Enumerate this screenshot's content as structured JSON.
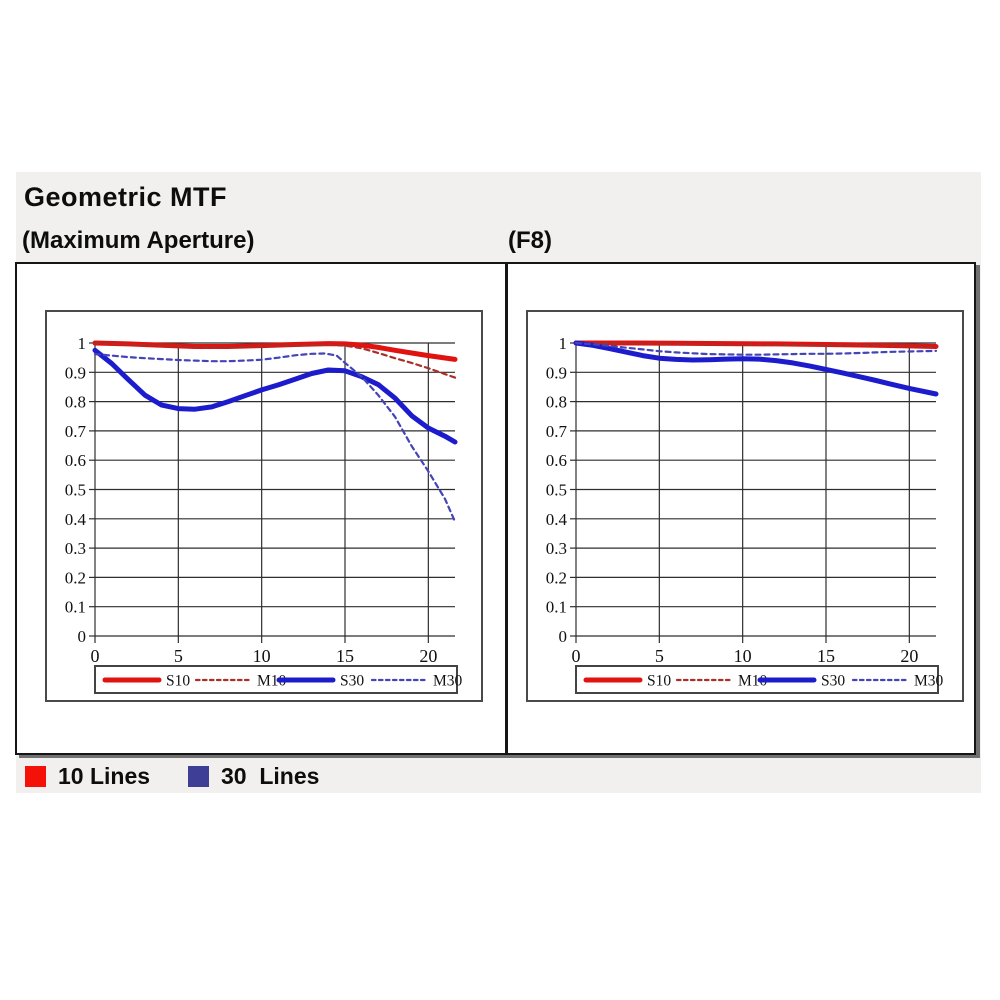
{
  "header": {
    "title": "Geometric MTF",
    "left_subtitle": "(Maximum Aperture)",
    "right_subtitle": "(F8)"
  },
  "bottom_legend": [
    {
      "label": "10 Lines",
      "color": "#f41108"
    },
    {
      "label": "30  Lines",
      "color": "#3e3e96"
    }
  ],
  "style": {
    "panel_bg": "#f1f0ee",
    "grid_color": "#2e2e2e",
    "plot_border_color": "#1d1d1d",
    "inner_panel_border_color": "#4a4a4a",
    "legend_border_color": "#444444",
    "text_color": "#111111"
  },
  "chart_data": [
    {
      "id": "max-aperture",
      "type": "line",
      "title": "(Maximum Aperture)",
      "xlabel": "",
      "ylabel": "",
      "xlim": [
        0,
        21.6
      ],
      "ylim": [
        0,
        1
      ],
      "xticks": [
        0,
        5,
        10,
        15,
        20
      ],
      "xtick_labels": [
        "0",
        "5",
        "10",
        "15",
        "20"
      ],
      "yticks": [
        0,
        0.1,
        0.2,
        0.3,
        0.4,
        0.5,
        0.6,
        0.7,
        0.8,
        0.9,
        1
      ],
      "ytick_labels": [
        "0",
        "0.1",
        "0.2",
        "0.3",
        "0.4",
        "0.5",
        "0.6",
        "0.7",
        "0.8",
        "0.9",
        "1"
      ],
      "grid": true,
      "legend_position": "bottom",
      "series": [
        {
          "name": "S10",
          "color": "#e01310",
          "style": "solid",
          "width": 5,
          "points": [
            [
              0,
              1.0
            ],
            [
              2,
              0.997
            ],
            [
              4,
              0.992
            ],
            [
              6,
              0.988
            ],
            [
              8,
              0.988
            ],
            [
              10,
              0.991
            ],
            [
              12,
              0.995
            ],
            [
              14,
              0.998
            ],
            [
              15,
              0.997
            ],
            [
              16,
              0.993
            ],
            [
              17,
              0.985
            ],
            [
              18,
              0.975
            ],
            [
              19,
              0.966
            ],
            [
              20,
              0.957
            ],
            [
              21.6,
              0.944
            ]
          ]
        },
        {
          "name": "M10",
          "color": "#ad2e28",
          "style": "dashed",
          "width": 2.2,
          "points": [
            [
              0,
              1.0
            ],
            [
              2,
              0.995
            ],
            [
              4,
              0.99
            ],
            [
              6,
              0.986
            ],
            [
              8,
              0.985
            ],
            [
              10,
              0.988
            ],
            [
              12,
              0.991
            ],
            [
              14,
              0.994
            ],
            [
              15,
              0.991
            ],
            [
              16,
              0.982
            ],
            [
              17,
              0.966
            ],
            [
              18,
              0.948
            ],
            [
              19,
              0.932
            ],
            [
              20,
              0.914
            ],
            [
              21.6,
              0.882
            ]
          ]
        },
        {
          "name": "S30",
          "color": "#1c1ccd",
          "style": "solid",
          "width": 5,
          "points": [
            [
              0,
              0.975
            ],
            [
              1,
              0.93
            ],
            [
              2,
              0.875
            ],
            [
              3,
              0.822
            ],
            [
              4,
              0.788
            ],
            [
              5,
              0.776
            ],
            [
              6,
              0.774
            ],
            [
              7,
              0.782
            ],
            [
              8,
              0.8
            ],
            [
              9,
              0.82
            ],
            [
              10,
              0.84
            ],
            [
              11,
              0.857
            ],
            [
              12,
              0.876
            ],
            [
              13,
              0.896
            ],
            [
              14,
              0.908
            ],
            [
              15,
              0.905
            ],
            [
              16,
              0.885
            ],
            [
              17,
              0.858
            ],
            [
              18,
              0.812
            ],
            [
              19,
              0.752
            ],
            [
              20,
              0.71
            ],
            [
              21,
              0.682
            ],
            [
              21.6,
              0.662
            ]
          ]
        },
        {
          "name": "M30",
          "color": "#4444b8",
          "style": "dashed",
          "width": 2.2,
          "points": [
            [
              0,
              0.962
            ],
            [
              1,
              0.957
            ],
            [
              2,
              0.952
            ],
            [
              3,
              0.948
            ],
            [
              4,
              0.945
            ],
            [
              5,
              0.942
            ],
            [
              6,
              0.94
            ],
            [
              7,
              0.938
            ],
            [
              8,
              0.938
            ],
            [
              9,
              0.94
            ],
            [
              10,
              0.943
            ],
            [
              11,
              0.95
            ],
            [
              12,
              0.958
            ],
            [
              13,
              0.963
            ],
            [
              13.8,
              0.964
            ],
            [
              14.5,
              0.957
            ],
            [
              15,
              0.932
            ],
            [
              16,
              0.885
            ],
            [
              17,
              0.822
            ],
            [
              18,
              0.748
            ],
            [
              19,
              0.648
            ],
            [
              20,
              0.562
            ],
            [
              21,
              0.468
            ],
            [
              21.6,
              0.39
            ]
          ]
        }
      ]
    },
    {
      "id": "f8",
      "type": "line",
      "title": "(F8)",
      "xlabel": "",
      "ylabel": "",
      "xlim": [
        0,
        21.6
      ],
      "ylim": [
        0,
        1
      ],
      "xticks": [
        0,
        5,
        10,
        15,
        20
      ],
      "xtick_labels": [
        "0",
        "5",
        "10",
        "15",
        "20"
      ],
      "yticks": [
        0,
        0.1,
        0.2,
        0.3,
        0.4,
        0.5,
        0.6,
        0.7,
        0.8,
        0.9,
        1
      ],
      "ytick_labels": [
        "0",
        "0.1",
        "0.2",
        "0.3",
        "0.4",
        "0.5",
        "0.6",
        "0.7",
        "0.8",
        "0.9",
        "1"
      ],
      "grid": true,
      "legend_position": "bottom",
      "series": [
        {
          "name": "S10",
          "color": "#e01310",
          "style": "solid",
          "width": 5,
          "points": [
            [
              0,
              1.0
            ],
            [
              3,
              1.0
            ],
            [
              6,
              0.999
            ],
            [
              9,
              0.998
            ],
            [
              12,
              0.997
            ],
            [
              15,
              0.995
            ],
            [
              18,
              0.992
            ],
            [
              20,
              0.99
            ],
            [
              21.6,
              0.988
            ]
          ]
        },
        {
          "name": "M10",
          "color": "#ad2e28",
          "style": "dashed",
          "width": 2.2,
          "points": [
            [
              0,
              1.0
            ],
            [
              3,
              0.999
            ],
            [
              6,
              0.997
            ],
            [
              9,
              0.995
            ],
            [
              12,
              0.994
            ],
            [
              15,
              0.993
            ],
            [
              18,
              0.991
            ],
            [
              20,
              0.989
            ],
            [
              21.6,
              0.986
            ]
          ]
        },
        {
          "name": "S30",
          "color": "#1c1ccd",
          "style": "solid",
          "width": 5,
          "points": [
            [
              0,
              1.0
            ],
            [
              1,
              0.992
            ],
            [
              2,
              0.981
            ],
            [
              3,
              0.969
            ],
            [
              4,
              0.957
            ],
            [
              5,
              0.948
            ],
            [
              6,
              0.944
            ],
            [
              7,
              0.942
            ],
            [
              8,
              0.943
            ],
            [
              9,
              0.945
            ],
            [
              10,
              0.946
            ],
            [
              11,
              0.945
            ],
            [
              12,
              0.94
            ],
            [
              13,
              0.932
            ],
            [
              14,
              0.922
            ],
            [
              15,
              0.91
            ],
            [
              16,
              0.898
            ],
            [
              17,
              0.885
            ],
            [
              18,
              0.872
            ],
            [
              19,
              0.858
            ],
            [
              20,
              0.845
            ],
            [
              21.6,
              0.826
            ]
          ]
        },
        {
          "name": "M30",
          "color": "#4444b8",
          "style": "dashed",
          "width": 2.2,
          "points": [
            [
              0,
              1.0
            ],
            [
              1,
              0.996
            ],
            [
              2,
              0.99
            ],
            [
              3,
              0.984
            ],
            [
              4,
              0.978
            ],
            [
              5,
              0.972
            ],
            [
              6,
              0.968
            ],
            [
              7,
              0.965
            ],
            [
              8,
              0.962
            ],
            [
              9,
              0.961
            ],
            [
              10,
              0.96
            ],
            [
              11,
              0.96
            ],
            [
              12,
              0.961
            ],
            [
              13,
              0.962
            ],
            [
              14,
              0.963
            ],
            [
              15,
              0.963
            ],
            [
              16,
              0.964
            ],
            [
              17,
              0.966
            ],
            [
              18,
              0.968
            ],
            [
              19,
              0.97
            ],
            [
              20,
              0.971
            ],
            [
              21.6,
              0.973
            ]
          ]
        }
      ]
    }
  ]
}
